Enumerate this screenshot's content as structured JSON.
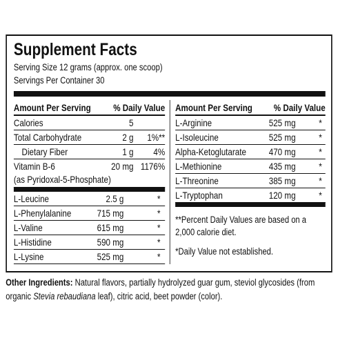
{
  "header": {
    "title": "Supplement Facts",
    "serving_size": "Serving Size 12 grams (approx. one scoop)",
    "servings_per_container": "Servings Per Container 30"
  },
  "left": {
    "column_headers": [
      "Amount Per Serving",
      "% Daily Value"
    ],
    "groups": [
      [
        {
          "name": "Calories",
          "amount": "5"
        },
        {
          "name": "Total Carbohydrate",
          "amount": "2 g",
          "dv": "1%**"
        },
        {
          "name": "Dietary Fiber",
          "amount": "1 g",
          "dv": "4%"
        },
        {
          "name": "Vitamin B-6",
          "amount": "20 mg",
          "dv": "1176%",
          "note": "(as Pyridoxal-5-Phosphate)"
        }
      ],
      [
        {
          "name": "L-Leucine",
          "amount": "2.5 g",
          "dv": "*"
        },
        {
          "name": "L-Phenylalanine",
          "amount": "715 mg",
          "dv": "*"
        },
        {
          "name": "L-Valine",
          "amount": "615 mg",
          "dv": "*"
        },
        {
          "name": "L-Histidine",
          "amount": "590 mg",
          "dv": "*"
        },
        {
          "name": "L-Lysine",
          "amount": "525 mg",
          "dv": "*"
        }
      ]
    ]
  },
  "right": {
    "column_headers": [
      "Amount Per Serving",
      "% Daily Value"
    ],
    "rows": [
      {
        "name": "L-Arginine",
        "amount": "525 mg",
        "dv": "*"
      },
      {
        "name": "L-Isoleucine",
        "amount": "525 mg",
        "dv": "*"
      },
      {
        "name": "Alpha-Ketoglutarate",
        "amount": "470 mg",
        "dv": "*"
      },
      {
        "name": "L-Methionine",
        "amount": "435 mg",
        "dv": "*"
      },
      {
        "name": "L-Threonine",
        "amount": "385 mg",
        "dv": "*"
      },
      {
        "name": "L-Tryptophan",
        "amount": "120 mg",
        "dv": "*"
      }
    ],
    "footnotes": [
      "**Percent Daily Values are based on a 2,000 calorie diet.",
      "*Daily Value not established."
    ]
  },
  "other_ingredients": {
    "label": "Other Ingredients:",
    "text_before": " Natural flavors, partially hydrolyzed guar gum, steviol glycosides (from organic ",
    "italic": "Stevia rebaudiana",
    "text_after": " leaf), citric acid, beet powder (color)."
  }
}
